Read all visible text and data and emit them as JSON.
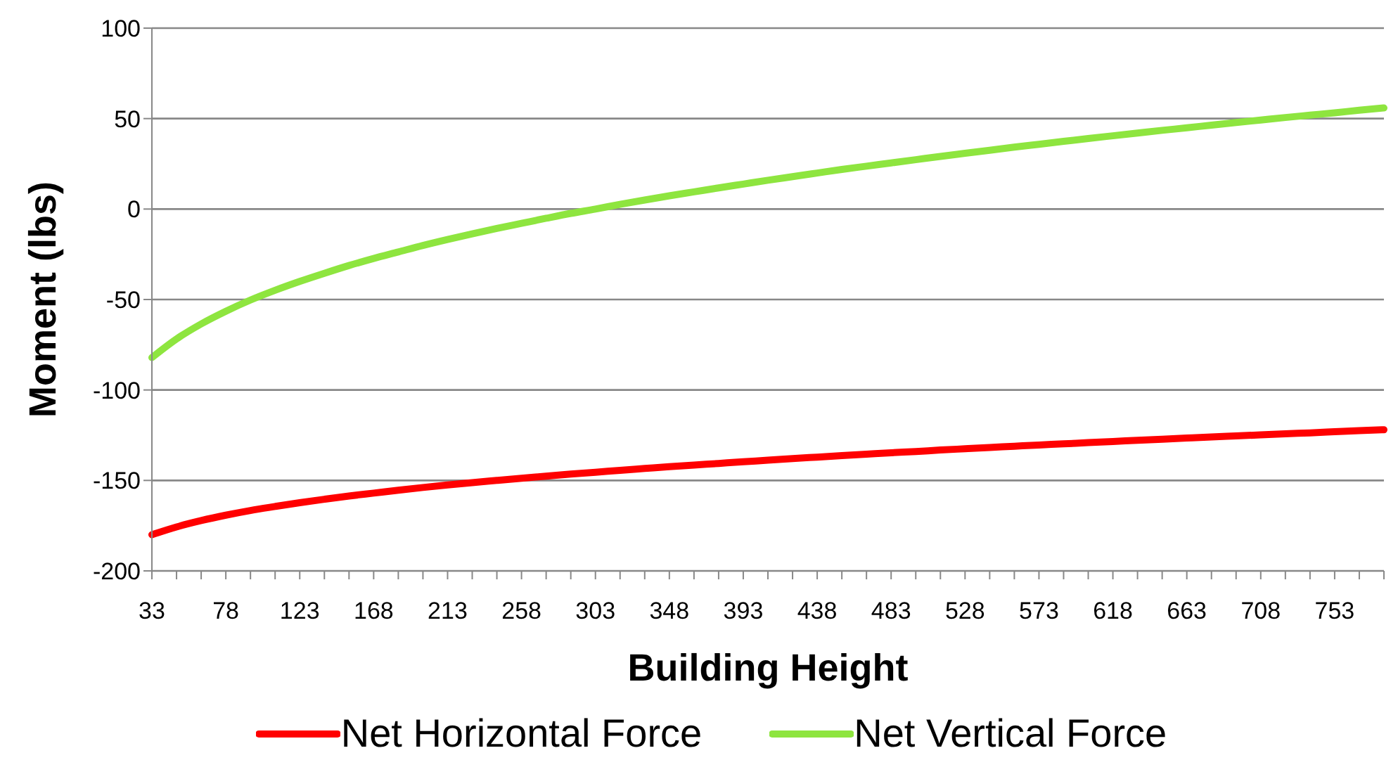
{
  "chart_data": {
    "type": "line",
    "xlabel": "Building Height",
    "ylabel": "Moment (lbs)",
    "categories": [
      "33",
      null,
      null,
      "78",
      null,
      null,
      "123",
      null,
      null,
      "168",
      null,
      null,
      "213",
      null,
      null,
      "258",
      null,
      null,
      "303",
      null,
      null,
      "348",
      null,
      null,
      "393",
      null,
      null,
      "438",
      null,
      null,
      "483",
      null,
      null,
      "528",
      null,
      null,
      "573",
      null,
      null,
      "618",
      null,
      null,
      "663",
      null,
      null,
      "708",
      null,
      null,
      "753",
      null,
      null
    ],
    "series": [
      {
        "name": "Net Horizontal Force",
        "color": "#ff0000",
        "values": [
          -180,
          -175.7,
          -172.2,
          -169.2,
          -166.6,
          -164.4,
          -162.3,
          -160.4,
          -158.6,
          -157,
          -155.4,
          -153.9,
          -152.5,
          -151.2,
          -150,
          -148.8,
          -147.6,
          -146.5,
          -145.5,
          -144.4,
          -143.4,
          -142.4,
          -141.5,
          -140.6,
          -139.7,
          -138.8,
          -137.9,
          -137.1,
          -136.3,
          -135.5,
          -134.7,
          -134,
          -133.2,
          -132.5,
          -131.8,
          -131.1,
          -130.4,
          -129.8,
          -129.1,
          -128.5,
          -127.8,
          -127.2,
          -126.6,
          -126,
          -125.4,
          -124.8,
          -124.2,
          -123.7,
          -123.1,
          -122.5,
          -122
        ]
      },
      {
        "name": "Net Vertical Force",
        "color": "#8ee53f",
        "values": [
          -82.1,
          -71.8,
          -63.5,
          -56.5,
          -50.3,
          -44.9,
          -40,
          -35.5,
          -31.2,
          -27.3,
          -23.7,
          -20.1,
          -16.8,
          -13.7,
          -10.7,
          -7.9,
          -5.1,
          -2.4,
          0,
          2.6,
          5,
          7.3,
          9.5,
          11.7,
          13.8,
          15.9,
          17.9,
          19.9,
          21.9,
          23.7,
          25.5,
          27.3,
          29.1,
          30.8,
          32.5,
          34.2,
          35.8,
          37.4,
          39,
          40.5,
          42,
          43.5,
          44.9,
          46.4,
          47.8,
          49.2,
          50.6,
          51.9,
          53.2,
          54.6,
          55.9
        ]
      }
    ],
    "ylim": [
      -200,
      100
    ],
    "yticks": [
      -200,
      -150,
      -100,
      -50,
      0,
      50,
      100
    ],
    "grid": "y",
    "legend": "bottom",
    "marker": "none",
    "line_style": "solid"
  }
}
